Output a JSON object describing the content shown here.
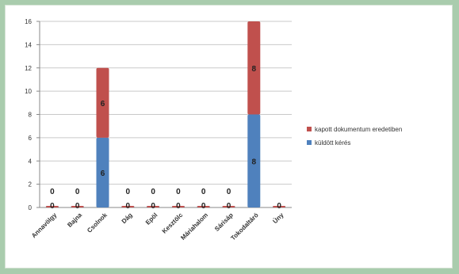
{
  "chart_data": {
    "type": "bar",
    "stacked": true,
    "categories": [
      "Annavölgy",
      "Bajna",
      "Csolnok",
      "Dág",
      "Epöl",
      "Kesztölc",
      "Máriahalom",
      "Sárisáp",
      "Tokodaltáró",
      "Úny"
    ],
    "series": [
      {
        "name": "küldött kérés",
        "color": "#4f81bd",
        "values": [
          0,
          0,
          6,
          0,
          0,
          0,
          0,
          0,
          8,
          0
        ]
      },
      {
        "name": "kapott dokumentum eredetiben",
        "color": "#c0504d",
        "values": [
          0,
          0,
          6,
          0,
          0,
          0,
          0,
          0,
          8,
          0
        ]
      }
    ],
    "labels_bottom": [
      "0",
      "0",
      "6",
      "0",
      "0",
      "0",
      "0",
      "0",
      "8",
      "0"
    ],
    "labels_top": [
      "0",
      "0",
      "6",
      "0",
      "0",
      "0",
      "0",
      "0",
      "8",
      ""
    ],
    "ylim": [
      0,
      16
    ],
    "yticks": [
      "0",
      "2",
      "4",
      "6",
      "8",
      "10",
      "12",
      "14",
      "16"
    ],
    "legend_position": "right",
    "grid": true
  }
}
